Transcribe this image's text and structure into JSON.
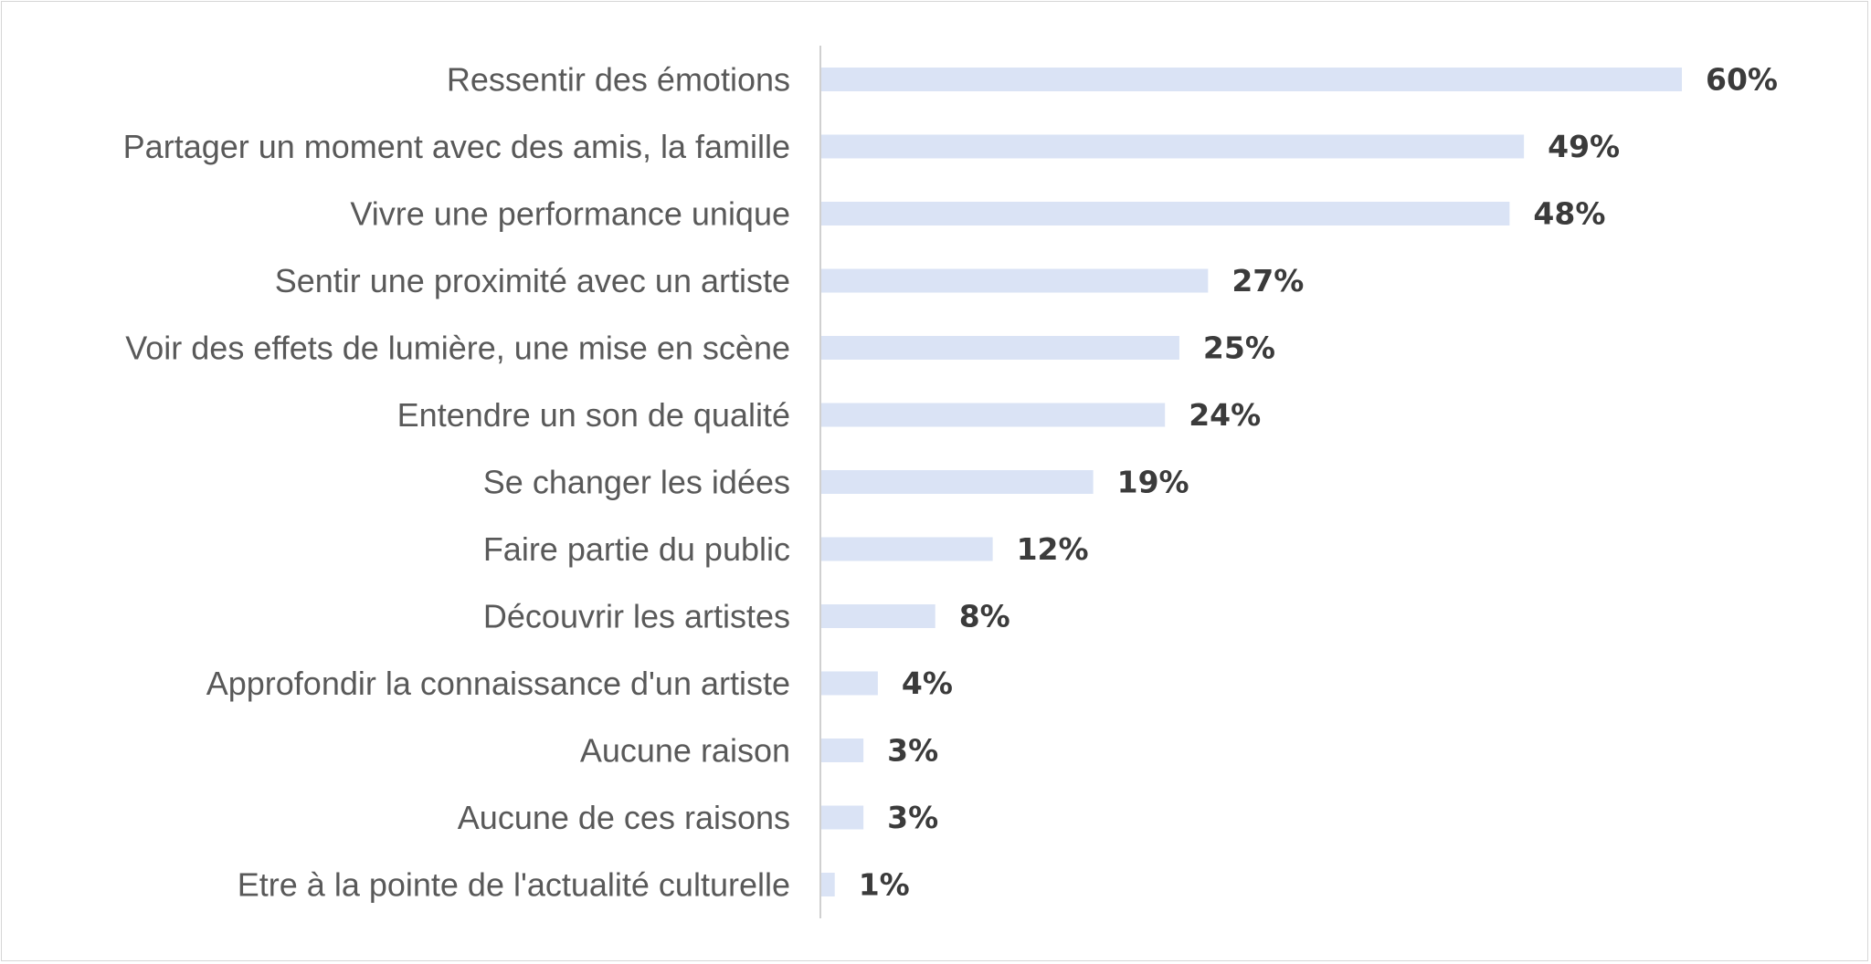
{
  "colors": {
    "bar": "#dae3f5",
    "axis": "#d0d0d0",
    "category_text": "#595959",
    "value_text": "#3b3b3b",
    "border": "#d6d6d6"
  },
  "chart_data": {
    "type": "bar",
    "orientation": "horizontal",
    "title": "",
    "xlabel": "",
    "ylabel": "",
    "grid": false,
    "legend": "none",
    "xlim": [
      0,
      60
    ],
    "value_suffix": "%",
    "categories": [
      "Ressentir des émotions",
      "Partager un moment avec des amis, la famille",
      "Vivre une performance unique",
      "Sentir une proximité avec un artiste",
      "Voir des effets de lumière, une mise en scène",
      "Entendre un son de qualité",
      "Se changer les idées",
      "Faire partie du public",
      "Découvrir les artistes",
      "Approfondir la connaissance d'un artiste",
      "Aucune raison",
      "Aucune de ces raisons",
      "Etre à la pointe de l'actualité culturelle"
    ],
    "values": [
      60,
      49,
      48,
      27,
      25,
      24,
      19,
      12,
      8,
      4,
      3,
      3,
      1
    ],
    "value_labels": [
      "60%",
      "49%",
      "48%",
      "27%",
      "25%",
      "24%",
      "19%",
      "12%",
      "8%",
      "4%",
      "3%",
      "3%",
      "1%"
    ]
  }
}
